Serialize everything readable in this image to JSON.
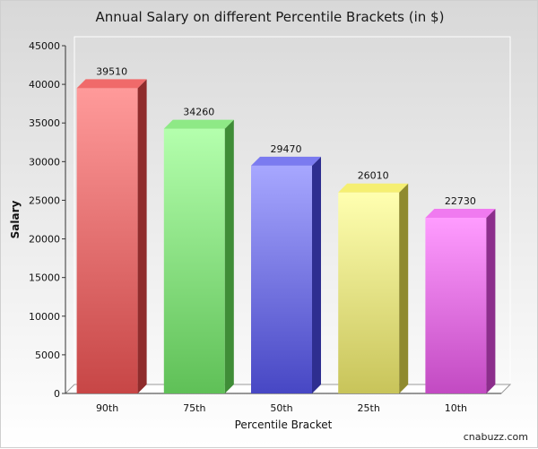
{
  "chart_data": {
    "type": "bar",
    "title": "Annual Salary on different Percentile Brackets (in $)",
    "xlabel": "Percentile Bracket",
    "ylabel": "Salary",
    "categories": [
      "90th",
      "75th",
      "50th",
      "25th",
      "10th"
    ],
    "values": [
      39510,
      34260,
      29470,
      26010,
      22730
    ],
    "ylim": [
      0,
      45000
    ],
    "yticks": [
      0,
      5000,
      10000,
      15000,
      20000,
      25000,
      30000,
      35000,
      40000,
      45000
    ],
    "grid": false,
    "colors": [
      {
        "top": "#ff9a9a",
        "bottom": "#c74646",
        "side": "#8f2c2c",
        "cap": "#f06a6a"
      },
      {
        "top": "#b4ffad",
        "bottom": "#5fc057",
        "side": "#3f8d37",
        "cap": "#8ee986"
      },
      {
        "top": "#a7a7ff",
        "bottom": "#4747c4",
        "side": "#2e2e90",
        "cap": "#7b7bf0"
      },
      {
        "top": "#ffffb0",
        "bottom": "#c8c45a",
        "side": "#8f8a2e",
        "cap": "#f5ef72"
      },
      {
        "top": "#ff9cff",
        "bottom": "#c24ac2",
        "side": "#8c2e8c",
        "cap": "#f07af0"
      }
    ]
  },
  "watermark": "cnabuzz.com"
}
